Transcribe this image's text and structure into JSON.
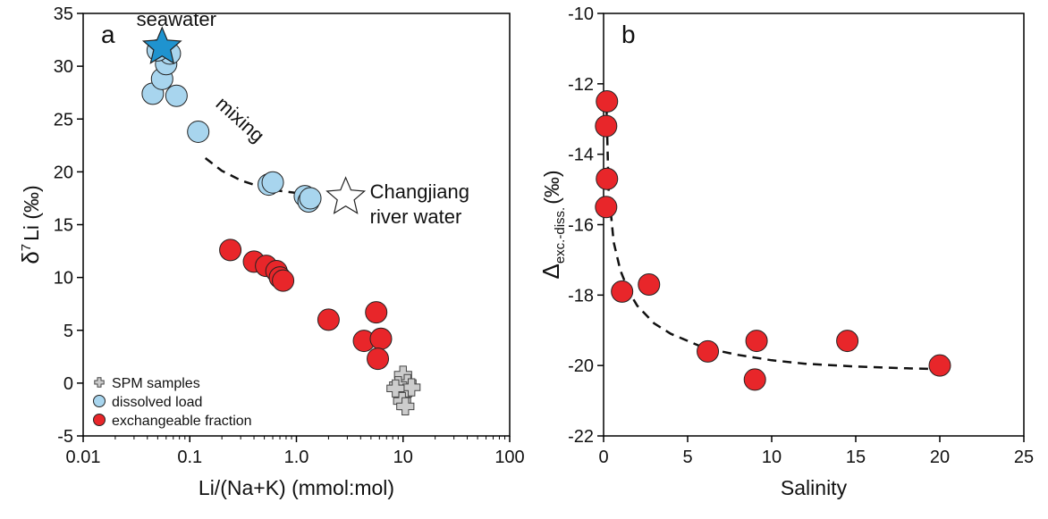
{
  "chart_data": [
    {
      "type": "scatter",
      "panel_label": "a",
      "x_label": "Li/(Na+K) (mmol:mol)",
      "y_label": {
        "main": "δ",
        "sup": "7",
        "rest": "Li (‰)"
      },
      "x_log": true,
      "xlim": [
        0.01,
        100
      ],
      "xticks": [
        0.01,
        0.1,
        {
          "value": 1,
          "label": "1.0"
        },
        10,
        100
      ],
      "ylim": [
        -5,
        35
      ],
      "yticks": [
        -5,
        0,
        5,
        10,
        15,
        20,
        25,
        30,
        35
      ],
      "legend": "lower left",
      "series": [
        {
          "name": "SPM samples",
          "marker": "cross",
          "color": "#cccccc",
          "x": [
            10,
            11,
            9,
            10,
            12,
            9.8,
            10.5,
            8.5
          ],
          "y": [
            0.8,
            0,
            -0.2,
            -1,
            -0.4,
            -1.7,
            -2.2,
            -0.5
          ]
        },
        {
          "name": "dissolved load",
          "marker": "circle",
          "color": "#a8d5ee",
          "x": [
            0.045,
            0.055,
            0.06,
            0.065,
            0.05,
            0.075,
            0.12,
            0.55,
            0.6,
            1.2,
            1.3,
            1.35
          ],
          "y": [
            27.4,
            28.8,
            30.2,
            31.2,
            31.5,
            27.2,
            23.8,
            18.8,
            19,
            17.7,
            17.2,
            17.5
          ]
        },
        {
          "name": "exchangeable fraction",
          "marker": "circle",
          "color": "#e8262a",
          "x": [
            0.24,
            0.4,
            0.52,
            0.65,
            0.7,
            0.75,
            2.0,
            4.3,
            5.6,
            6.2,
            5.8
          ],
          "y": [
            12.6,
            11.5,
            11.1,
            10.6,
            10.0,
            9.7,
            6.0,
            4.0,
            6.7,
            4.2,
            2.3
          ]
        }
      ],
      "stars": [
        {
          "label": [
            "seawater"
          ],
          "x": 0.055,
          "y": 31.8,
          "color": "#1f93cf"
        },
        {
          "label": [
            "Changjiang",
            "river water"
          ],
          "x": 2.9,
          "y": 17.6,
          "color": "#ffffff"
        }
      ],
      "curve_label": "mixing",
      "curve": {
        "x": [
          0.14,
          0.2,
          0.3,
          0.45,
          0.7,
          1.0,
          1.3
        ],
        "y": [
          21.3,
          20.1,
          19.2,
          18.6,
          18.2,
          18.0,
          17.9
        ]
      }
    },
    {
      "type": "scatter",
      "panel_label": "b",
      "x_label": "Salinity",
      "y_label": {
        "main": "Δ",
        "sub": "exc.-diss.",
        "rest": "(‰)"
      },
      "x_log": false,
      "xlim": [
        0,
        25
      ],
      "xticks": [
        0,
        5,
        10,
        15,
        20,
        25
      ],
      "ylim": [
        -22,
        -10
      ],
      "yticks": [
        -22,
        -20,
        -18,
        -16,
        -14,
        -12,
        -10
      ],
      "series": [
        {
          "marker": "circle",
          "color": "#e8262a",
          "x": [
            0.2,
            0.15,
            0.2,
            0.15,
            1.1,
            2.7,
            6.2,
            9.1,
            9.0,
            14.5,
            20
          ],
          "y": [
            -12.5,
            -13.2,
            -14.7,
            -15.5,
            -17.9,
            -17.7,
            -19.6,
            -19.3,
            -20.4,
            -19.3,
            -20
          ]
        }
      ],
      "curve": {
        "x": [
          0.15,
          0.3,
          0.6,
          1,
          1.5,
          2,
          3,
          4,
          6,
          8,
          10,
          12,
          15,
          18,
          20
        ],
        "y": [
          -12.2,
          -15,
          -16.5,
          -17.3,
          -17.9,
          -18.3,
          -18.8,
          -19.1,
          -19.5,
          -19.7,
          -19.85,
          -19.95,
          -20.03,
          -20.08,
          -20.1
        ]
      }
    }
  ]
}
